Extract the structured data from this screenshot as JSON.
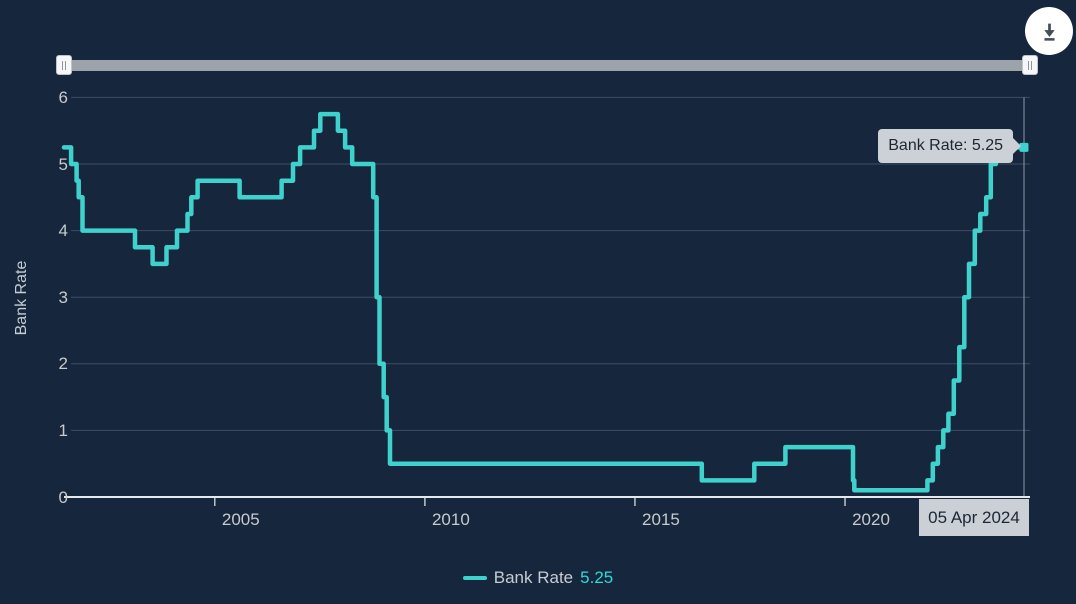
{
  "colors": {
    "background": "#16263d",
    "series_teal": "#3fd1cc",
    "gridline": "#3e4d64",
    "axis_line": "#e6e9ec",
    "tick_label": "#c8cacd",
    "crosshair": "#9fa9b4",
    "tooltip_bg": "#ccd1d7",
    "slider_track": "#9ca3ab"
  },
  "toolbar": {
    "download_icon": "download-chart"
  },
  "chart_data": {
    "type": "line",
    "step": true,
    "ylabel": "Bank Rate",
    "xlabel": "",
    "xlim": [
      2001.41,
      2024.26
    ],
    "ylim": [
      0,
      6
    ],
    "grid": true,
    "yticks": [
      0,
      1,
      2,
      3,
      4,
      5,
      6
    ],
    "xticks": [
      2005,
      2010,
      2015,
      2020
    ],
    "xtick_labels": [
      "2005",
      "2010",
      "2015",
      "2020"
    ],
    "series": [
      {
        "name": "Bank Rate",
        "color": "#3fd1cc",
        "points": [
          [
            2001.41,
            5.25
          ],
          [
            2001.58,
            5.0
          ],
          [
            2001.71,
            4.75
          ],
          [
            2001.76,
            4.5
          ],
          [
            2001.85,
            4.0
          ],
          [
            2003.1,
            3.75
          ],
          [
            2003.52,
            3.5
          ],
          [
            2003.85,
            3.75
          ],
          [
            2004.1,
            4.0
          ],
          [
            2004.35,
            4.25
          ],
          [
            2004.44,
            4.5
          ],
          [
            2004.59,
            4.75
          ],
          [
            2005.59,
            4.5
          ],
          [
            2006.59,
            4.75
          ],
          [
            2006.86,
            5.0
          ],
          [
            2007.03,
            5.25
          ],
          [
            2007.36,
            5.5
          ],
          [
            2007.51,
            5.75
          ],
          [
            2007.93,
            5.5
          ],
          [
            2008.1,
            5.25
          ],
          [
            2008.27,
            5.0
          ],
          [
            2008.77,
            4.5
          ],
          [
            2008.85,
            3.0
          ],
          [
            2008.92,
            2.0
          ],
          [
            2009.02,
            1.5
          ],
          [
            2009.09,
            1.0
          ],
          [
            2009.17,
            0.5
          ],
          [
            2016.59,
            0.25
          ],
          [
            2017.84,
            0.5
          ],
          [
            2018.58,
            0.75
          ],
          [
            2020.19,
            0.25
          ],
          [
            2020.22,
            0.1
          ],
          [
            2021.96,
            0.25
          ],
          [
            2022.09,
            0.5
          ],
          [
            2022.21,
            0.75
          ],
          [
            2022.34,
            1.0
          ],
          [
            2022.46,
            1.25
          ],
          [
            2022.59,
            1.75
          ],
          [
            2022.72,
            2.25
          ],
          [
            2022.84,
            3.0
          ],
          [
            2022.95,
            3.5
          ],
          [
            2023.09,
            4.0
          ],
          [
            2023.22,
            4.25
          ],
          [
            2023.36,
            4.5
          ],
          [
            2023.47,
            5.0
          ],
          [
            2023.59,
            5.25
          ],
          [
            2024.26,
            5.25
          ]
        ],
        "last_point": {
          "date": "05 Apr 2024",
          "value": 5.25
        }
      }
    ]
  },
  "tooltip": {
    "label": "Bank Rate:",
    "value": "5.25"
  },
  "crosshair_label": "05 Apr 2024",
  "legend": {
    "name": "Bank Rate",
    "value": "5.25"
  },
  "y_axis_title": "Bank Rate"
}
